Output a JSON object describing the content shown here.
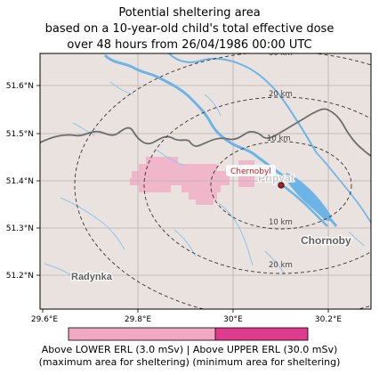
{
  "title": {
    "line1": "Potential sheltering area",
    "line2": "based on a 10-year-old child's total effective dose",
    "line3": "over 48 hours from 26/04/1986 00:00 UTC"
  },
  "map": {
    "lon_range": [
      29.6,
      30.3
    ],
    "lat_range": [
      51.13,
      51.67
    ],
    "x_ticks": [
      "29.6°E",
      "29.8°E",
      "30°E",
      "30.2°E"
    ],
    "y_ticks": [
      "51.6°N",
      "51.5°N",
      "51.4°N",
      "51.3°N",
      "51.2°N"
    ],
    "rings": [
      "10 km",
      "20 km",
      "30 km"
    ],
    "ring_labels_upper": [
      "10 km",
      "20 km",
      "30 km"
    ],
    "ring_labels_lower": [
      "10 km",
      "20 km"
    ],
    "source_label": "Chernobyl",
    "place_labels": {
      "chornobyl": "Chornoby",
      "radynka": "Radynka",
      "pripyat": "Pripyat"
    },
    "colors": {
      "land": "#e9e2de",
      "water": "#6db4e6",
      "border": "#6d6d6d",
      "lower_erl": "#f2a8c3",
      "upper_erl": "#de3a8e",
      "source_marker": "#b71c1c",
      "source_label": "#d21f1f"
    }
  },
  "legend": {
    "lower_label": "Above LOWER ERL (3.0 mSv)",
    "upper_label": "Above UPPER ERL (30.0 mSv)",
    "separator": "|",
    "lower_sub": "(maximum area for sheltering)",
    "upper_sub": "(minimum area for sheltering)"
  }
}
